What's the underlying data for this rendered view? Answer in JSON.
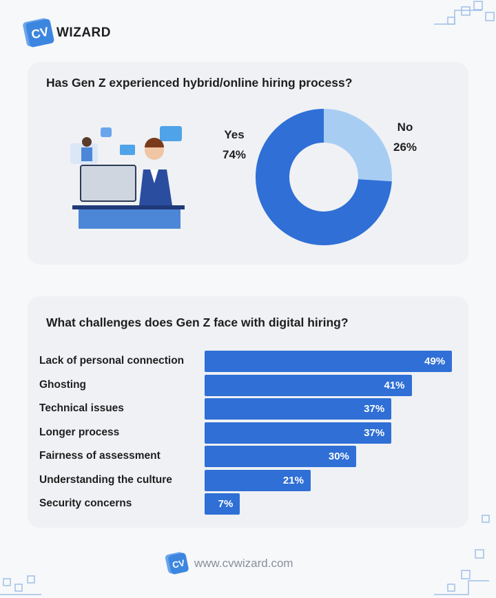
{
  "brand": {
    "mark": "CV",
    "name": "WIZARD",
    "url": "www.cvwizard.com"
  },
  "colors": {
    "primary": "#2f6fd6",
    "light": "#a8cdf3",
    "card": "#eff1f4"
  },
  "chart_data": [
    {
      "type": "pie",
      "donut": true,
      "title": "Has Gen Z experienced hybrid/online hiring process?",
      "slices": [
        {
          "label": "No",
          "value": 26,
          "display": "26%",
          "color": "#a8cdf3"
        },
        {
          "label": "Yes",
          "value": 74,
          "display": "74%",
          "color": "#2f6fd6"
        }
      ]
    },
    {
      "type": "bar",
      "orientation": "horizontal",
      "title": "What challenges does Gen Z face with digital hiring?",
      "categories": [
        "Lack of personal connection",
        "Ghosting",
        "Technical issues",
        "Longer process",
        "Fairness of assessment",
        "Understanding the culture",
        "Security concerns"
      ],
      "values": [
        49,
        41,
        37,
        37,
        30,
        21,
        7
      ],
      "labels": [
        "49%",
        "41%",
        "37%",
        "37%",
        "30%",
        "21%",
        "7%"
      ]
    }
  ]
}
